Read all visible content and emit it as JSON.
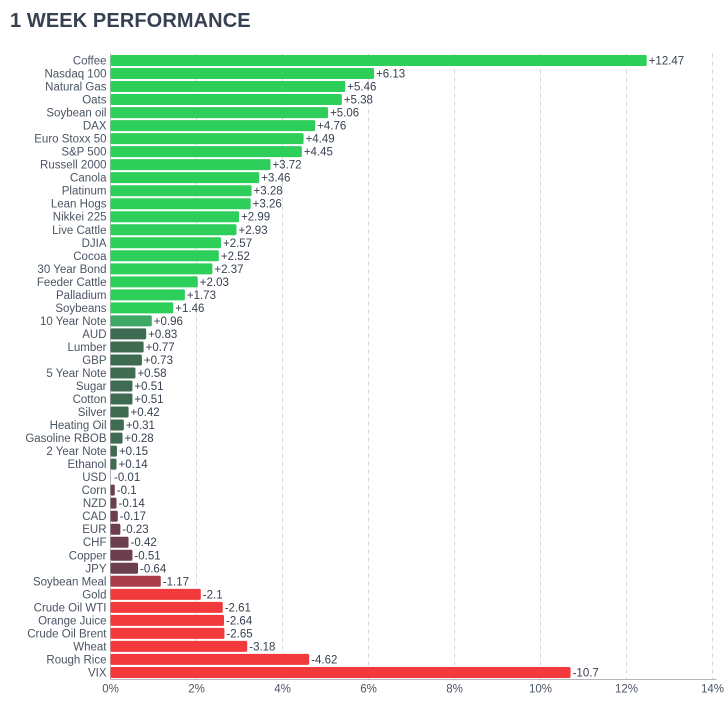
{
  "header": {
    "title": "1 WEEK PERFORMANCE"
  },
  "colors": {
    "bright_green": "#2ece5a",
    "mid_green": "#3ea866",
    "dark_green": "#3e6b52",
    "dark_red": "#6b3f4e",
    "mid_red": "#a83d49",
    "bright_red": "#f23a3c",
    "grid": "#d6d6d6",
    "axis": "#b5b5b5",
    "text": "#4b5563"
  },
  "chart_data": {
    "type": "bar",
    "orientation": "horizontal",
    "title": "1 WEEK PERFORMANCE",
    "xlabel": "",
    "ylabel": "",
    "xlim": [
      0,
      14
    ],
    "x_ticks": [
      0,
      2,
      4,
      6,
      8,
      10,
      12,
      14
    ],
    "x_tick_labels": [
      "0%",
      "2%",
      "4%",
      "6%",
      "8%",
      "10%",
      "12%",
      "14%"
    ],
    "grid": "vertical dashed",
    "value_scale": "absolute percent change; color shows sign",
    "categories": [
      "Coffee",
      "Nasdaq 100",
      "Natural Gas",
      "Oats",
      "Soybean oil",
      "DAX",
      "Euro Stoxx 50",
      "S&P 500",
      "Russell 2000",
      "Canola",
      "Platinum",
      "Lean Hogs",
      "Nikkei 225",
      "Live Cattle",
      "DJIA",
      "Cocoa",
      "30 Year Bond",
      "Feeder Cattle",
      "Palladium",
      "Soybeans",
      "10 Year Note",
      "AUD",
      "Lumber",
      "GBP",
      "5 Year Note",
      "Sugar",
      "Cotton",
      "Silver",
      "Heating Oil",
      "Gasoline RBOB",
      "2 Year Note",
      "Ethanol",
      "USD",
      "Corn",
      "NZD",
      "CAD",
      "EUR",
      "CHF",
      "Copper",
      "JPY",
      "Soybean Meal",
      "Gold",
      "Crude Oil WTI",
      "Orange Juice",
      "Crude Oil Brent",
      "Wheat",
      "Rough Rice",
      "VIX"
    ],
    "values": [
      12.47,
      6.13,
      5.46,
      5.38,
      5.06,
      4.76,
      4.49,
      4.45,
      3.72,
      3.46,
      3.28,
      3.26,
      2.99,
      2.93,
      2.57,
      2.52,
      2.37,
      2.03,
      1.73,
      1.46,
      0.96,
      0.83,
      0.77,
      0.73,
      0.58,
      0.51,
      0.51,
      0.42,
      0.31,
      0.28,
      0.15,
      0.14,
      -0.01,
      -0.1,
      -0.14,
      -0.17,
      -0.23,
      -0.42,
      -0.51,
      -0.64,
      -1.17,
      -2.1,
      -2.61,
      -2.64,
      -2.65,
      -3.18,
      -4.62,
      -10.7
    ],
    "value_labels": [
      "+12.47",
      "+6.13",
      "+5.46",
      "+5.38",
      "+5.06",
      "+4.76",
      "+4.49",
      "+4.45",
      "+3.72",
      "+3.46",
      "+3.28",
      "+3.26",
      "+2.99",
      "+2.93",
      "+2.57",
      "+2.52",
      "+2.37",
      "+2.03",
      "+1.73",
      "+1.46",
      "+0.96",
      "+0.83",
      "+0.77",
      "+0.73",
      "+0.58",
      "+0.51",
      "+0.51",
      "+0.42",
      "+0.31",
      "+0.28",
      "+0.15",
      "+0.14",
      "-0.01",
      "-0.1",
      "-0.14",
      "-0.17",
      "-0.23",
      "-0.42",
      "-0.51",
      "-0.64",
      "-1.17",
      "-2.1",
      "-2.61",
      "-2.64",
      "-2.65",
      "-3.18",
      "-4.62",
      "-10.7"
    ]
  }
}
